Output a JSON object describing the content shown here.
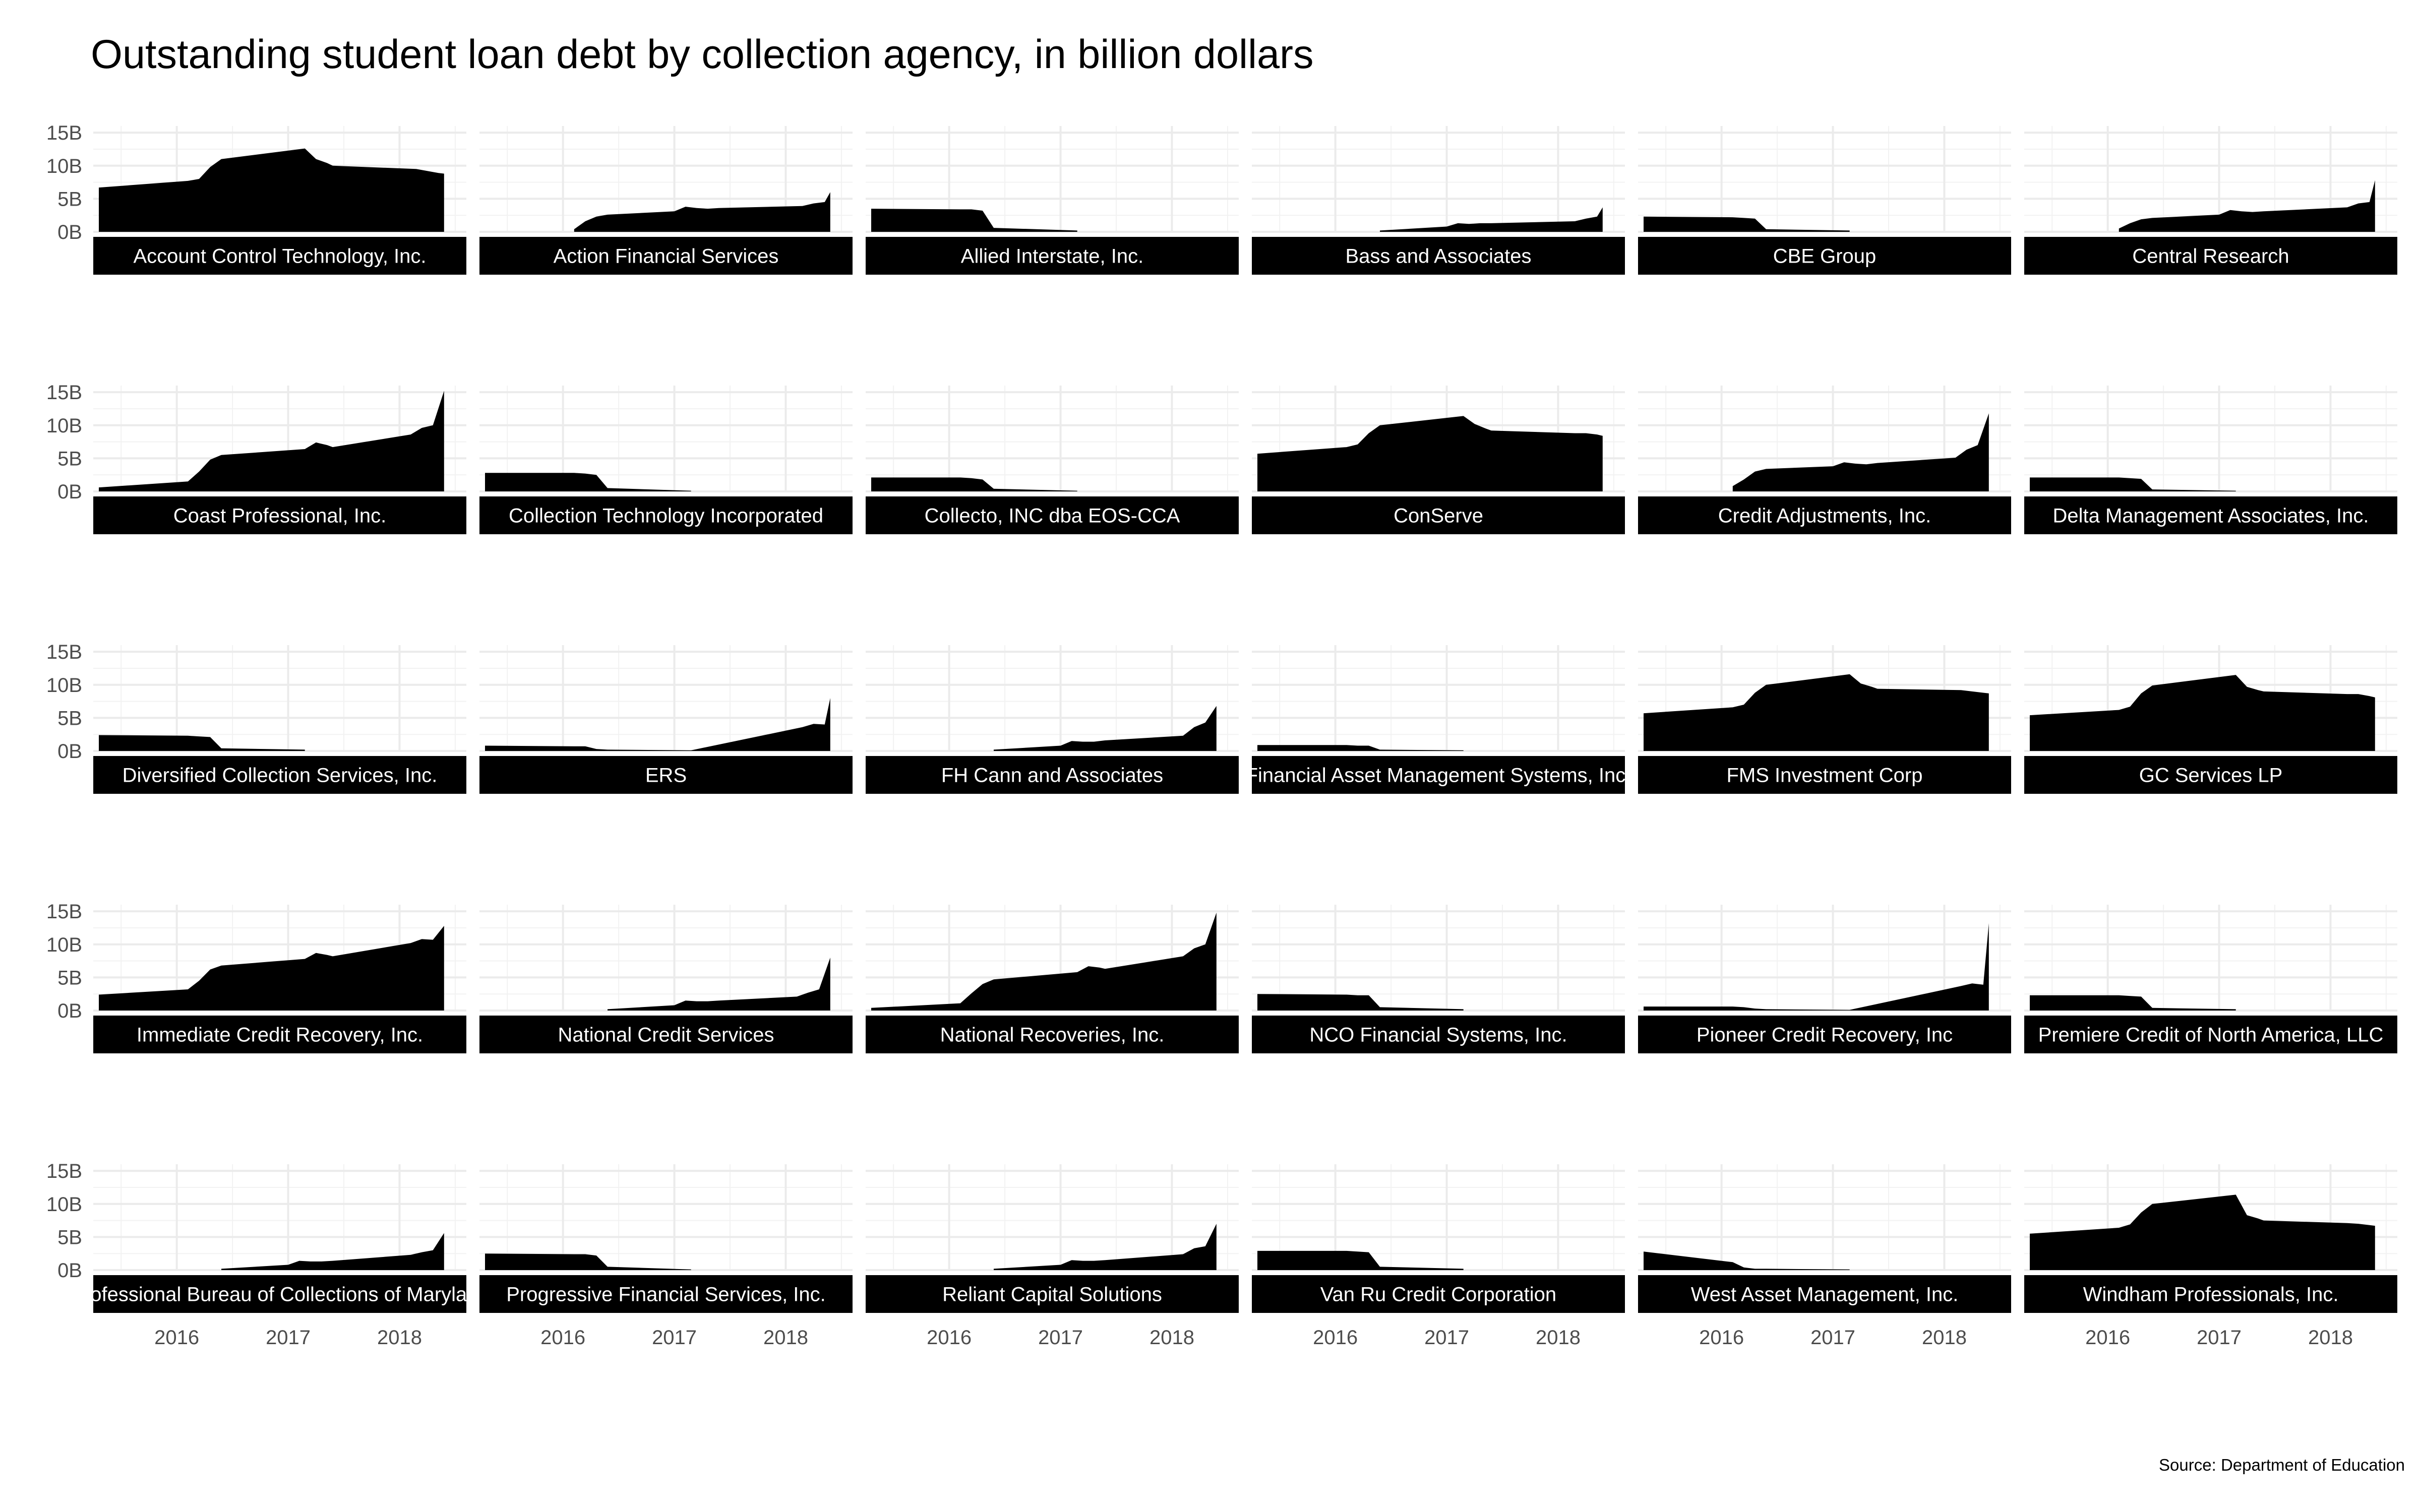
{
  "title": "Outstanding student loan debt by collection agency, in billion dollars",
  "caption": "Source: Department of Education",
  "chart_data": {
    "type": "area",
    "title": "Outstanding student loan debt by collection agency, in billion dollars",
    "unit": "billion dollars",
    "ylim": [
      0,
      16
    ],
    "y_ticks": [
      0,
      5,
      10,
      15
    ],
    "y_tick_labels": [
      "0B",
      "5B",
      "10B",
      "15B"
    ],
    "xlim": [
      2015.25,
      2018.6
    ],
    "x_ticks": [
      2016,
      2017,
      2018
    ],
    "x_tick_labels": [
      "2016",
      "2017",
      "2018"
    ],
    "grid": true,
    "fill_color": "#000000",
    "strip_color": "#000000",
    "panels": [
      {
        "name": "Account Control Technology, Inc.",
        "x": [
          2015.3,
          2016.1,
          2016.2,
          2016.3,
          2016.4,
          2017.15,
          2017.25,
          2017.35,
          2017.4,
          2018.15,
          2018.25,
          2018.35,
          2018.4
        ],
        "y": [
          6.7,
          7.7,
          8.0,
          9.8,
          11.0,
          12.6,
          11.0,
          10.4,
          10.0,
          9.5,
          9.2,
          8.9,
          8.8
        ]
      },
      {
        "name": "Action Financial Services",
        "x": [
          2016.1,
          2016.2,
          2016.3,
          2016.4,
          2017.0,
          2017.1,
          2017.2,
          2017.3,
          2017.4,
          2018.15,
          2018.25,
          2018.35,
          2018.4
        ],
        "y": [
          0.4,
          1.6,
          2.3,
          2.6,
          3.1,
          3.8,
          3.6,
          3.5,
          3.6,
          3.9,
          4.3,
          4.5,
          6.0
        ]
      },
      {
        "name": "Allied Interstate, Inc.",
        "x": [
          2015.3,
          2016.1,
          2016.2,
          2016.3,
          2016.4,
          2017.15
        ],
        "y": [
          3.5,
          3.4,
          3.4,
          3.2,
          0.6,
          0.2
        ]
      },
      {
        "name": "Bass and Associates",
        "x": [
          2016.4,
          2017.0,
          2017.1,
          2017.2,
          2017.3,
          2017.4,
          2018.15,
          2018.25,
          2018.35,
          2018.4
        ],
        "y": [
          0.2,
          0.8,
          1.3,
          1.2,
          1.3,
          1.3,
          1.6,
          2.0,
          2.3,
          3.7
        ]
      },
      {
        "name": "CBE Group",
        "x": [
          2015.3,
          2016.1,
          2016.2,
          2016.3,
          2016.4,
          2017.15
        ],
        "y": [
          2.3,
          2.2,
          2.1,
          2.0,
          0.4,
          0.2
        ]
      },
      {
        "name": "Central Research",
        "x": [
          2016.1,
          2016.2,
          2016.3,
          2016.4,
          2017.0,
          2017.1,
          2017.2,
          2017.3,
          2017.4,
          2018.15,
          2018.25,
          2018.35,
          2018.4
        ],
        "y": [
          0.5,
          1.3,
          1.9,
          2.1,
          2.6,
          3.3,
          3.1,
          3.0,
          3.1,
          3.7,
          4.3,
          4.5,
          7.8
        ]
      },
      {
        "name": "Coast Professional, Inc.",
        "x": [
          2015.3,
          2016.1,
          2016.2,
          2016.3,
          2016.4,
          2017.15,
          2017.25,
          2017.35,
          2017.4,
          2018.1,
          2018.2,
          2018.3,
          2018.4
        ],
        "y": [
          0.6,
          1.5,
          3.0,
          4.8,
          5.5,
          6.4,
          7.4,
          7.0,
          6.7,
          8.6,
          9.6,
          10.0,
          15.2
        ]
      },
      {
        "name": "Collection Technology Incorporated",
        "x": [
          2015.3,
          2016.1,
          2016.2,
          2016.3,
          2016.4,
          2017.15
        ],
        "y": [
          2.8,
          2.8,
          2.7,
          2.5,
          0.5,
          0.1
        ]
      },
      {
        "name": "Collecto, INC dba EOS-CCA",
        "x": [
          2015.3,
          2016.1,
          2016.2,
          2016.3,
          2016.4,
          2017.15
        ],
        "y": [
          2.1,
          2.1,
          2.0,
          1.8,
          0.4,
          0.1
        ]
      },
      {
        "name": "ConServe",
        "x": [
          2015.3,
          2016.1,
          2016.2,
          2016.3,
          2016.4,
          2017.15,
          2017.25,
          2017.35,
          2017.4,
          2018.15,
          2018.25,
          2018.35,
          2018.4
        ],
        "y": [
          5.7,
          6.7,
          7.1,
          8.8,
          10.0,
          11.4,
          10.2,
          9.5,
          9.2,
          8.8,
          8.8,
          8.6,
          8.4
        ]
      },
      {
        "name": "Credit Adjustments, Inc.",
        "x": [
          2016.1,
          2016.2,
          2016.3,
          2016.4,
          2017.0,
          2017.1,
          2017.2,
          2017.3,
          2017.4,
          2018.1,
          2018.2,
          2018.3,
          2018.4
        ],
        "y": [
          0.8,
          1.8,
          3.0,
          3.4,
          3.8,
          4.4,
          4.2,
          4.1,
          4.3,
          5.1,
          6.3,
          7.0,
          11.8
        ]
      },
      {
        "name": "Delta Management Associates, Inc.",
        "x": [
          2015.3,
          2016.1,
          2016.2,
          2016.3,
          2016.4,
          2017.15
        ],
        "y": [
          2.1,
          2.1,
          2.0,
          1.9,
          0.3,
          0.1
        ]
      },
      {
        "name": "Diversified Collection Services, Inc.",
        "x": [
          2015.3,
          2016.1,
          2016.2,
          2016.3,
          2016.4,
          2017.15
        ],
        "y": [
          2.4,
          2.3,
          2.2,
          2.1,
          0.4,
          0.2
        ]
      },
      {
        "name": "ERS",
        "x": [
          2015.3,
          2016.1,
          2016.2,
          2016.3,
          2016.4,
          2017.15,
          2018.15,
          2018.25,
          2018.35,
          2018.4
        ],
        "y": [
          0.8,
          0.7,
          0.7,
          0.3,
          0.2,
          0.1,
          3.6,
          4.1,
          4.0,
          8.0
        ]
      },
      {
        "name": "FH Cann and Associates",
        "x": [
          2016.4,
          2017.0,
          2017.1,
          2017.2,
          2017.3,
          2017.4,
          2018.1,
          2018.2,
          2018.3,
          2018.4
        ],
        "y": [
          0.2,
          0.8,
          1.5,
          1.4,
          1.4,
          1.6,
          2.3,
          3.6,
          4.3,
          6.8
        ]
      },
      {
        "name": "Financial Asset Management Systems, Inc.",
        "x": [
          2015.3,
          2016.1,
          2016.2,
          2016.3,
          2016.4,
          2017.15
        ],
        "y": [
          0.9,
          0.9,
          0.8,
          0.8,
          0.2,
          0.1
        ]
      },
      {
        "name": "FMS Investment Corp",
        "x": [
          2015.3,
          2016.1,
          2016.2,
          2016.3,
          2016.4,
          2017.15,
          2017.25,
          2017.35,
          2017.4,
          2018.15,
          2018.25,
          2018.35,
          2018.4
        ],
        "y": [
          5.7,
          6.6,
          7.0,
          8.8,
          10.0,
          11.6,
          10.2,
          9.7,
          9.4,
          9.2,
          9.0,
          8.8,
          8.7
        ]
      },
      {
        "name": "GC Services LP",
        "x": [
          2015.3,
          2016.1,
          2016.2,
          2016.3,
          2016.4,
          2017.15,
          2017.25,
          2017.35,
          2017.4,
          2018.15,
          2018.25,
          2018.35,
          2018.4
        ],
        "y": [
          5.4,
          6.2,
          6.7,
          8.7,
          9.9,
          11.5,
          9.7,
          9.2,
          9.0,
          8.6,
          8.6,
          8.3,
          8.1
        ]
      },
      {
        "name": "Immediate Credit Recovery, Inc.",
        "x": [
          2015.3,
          2016.1,
          2016.2,
          2016.3,
          2016.4,
          2017.15,
          2017.25,
          2017.35,
          2017.4,
          2018.1,
          2018.2,
          2018.3,
          2018.4
        ],
        "y": [
          2.4,
          3.2,
          4.5,
          6.2,
          6.8,
          7.8,
          8.7,
          8.4,
          8.2,
          10.2,
          10.8,
          10.7,
          12.8
        ]
      },
      {
        "name": "National Credit Services",
        "x": [
          2016.4,
          2017.0,
          2017.1,
          2017.2,
          2017.3,
          2017.4,
          2018.1,
          2018.2,
          2018.3,
          2018.4
        ],
        "y": [
          0.2,
          0.8,
          1.5,
          1.4,
          1.4,
          1.5,
          2.1,
          2.7,
          3.2,
          8.0
        ]
      },
      {
        "name": "National Recoveries, Inc.",
        "x": [
          2015.3,
          2016.1,
          2016.2,
          2016.3,
          2016.4,
          2017.15,
          2017.25,
          2017.35,
          2017.4,
          2018.1,
          2018.2,
          2018.3,
          2018.4
        ],
        "y": [
          0.4,
          1.1,
          2.6,
          4.0,
          4.7,
          5.8,
          6.7,
          6.5,
          6.3,
          8.2,
          9.4,
          10.0,
          14.8
        ]
      },
      {
        "name": "NCO Financial Systems, Inc.",
        "x": [
          2015.3,
          2016.1,
          2016.2,
          2016.3,
          2016.4,
          2017.15
        ],
        "y": [
          2.5,
          2.4,
          2.3,
          2.3,
          0.5,
          0.2
        ]
      },
      {
        "name": "Pioneer Credit Recovery, Inc",
        "x": [
          2015.3,
          2016.1,
          2016.2,
          2016.3,
          2016.4,
          2017.15,
          2018.15,
          2018.25,
          2018.35,
          2018.4
        ],
        "y": [
          0.6,
          0.6,
          0.5,
          0.3,
          0.2,
          0.1,
          3.7,
          4.1,
          3.9,
          13.2
        ]
      },
      {
        "name": "Premiere Credit of North America, LLC",
        "x": [
          2015.3,
          2016.1,
          2016.2,
          2016.3,
          2016.4,
          2017.15
        ],
        "y": [
          2.3,
          2.3,
          2.2,
          2.1,
          0.4,
          0.2
        ]
      },
      {
        "name": "Professional Bureau of Collections of Maryland",
        "x": [
          2016.4,
          2017.0,
          2017.1,
          2017.2,
          2017.3,
          2017.4,
          2018.1,
          2018.2,
          2018.3,
          2018.4
        ],
        "y": [
          0.2,
          0.8,
          1.4,
          1.3,
          1.3,
          1.4,
          2.3,
          2.7,
          3.0,
          5.6
        ]
      },
      {
        "name": "Progressive Financial Services, Inc.",
        "x": [
          2015.3,
          2016.1,
          2016.2,
          2016.3,
          2016.4,
          2017.15
        ],
        "y": [
          2.5,
          2.4,
          2.4,
          2.2,
          0.5,
          0.1
        ]
      },
      {
        "name": "Reliant Capital Solutions",
        "x": [
          2016.4,
          2017.0,
          2017.1,
          2017.2,
          2017.3,
          2017.4,
          2018.1,
          2018.2,
          2018.3,
          2018.4
        ],
        "y": [
          0.2,
          0.8,
          1.5,
          1.4,
          1.4,
          1.5,
          2.4,
          3.3,
          3.6,
          7.0
        ]
      },
      {
        "name": "Van Ru Credit Corporation",
        "x": [
          2015.3,
          2016.1,
          2016.2,
          2016.3,
          2016.4,
          2017.15
        ],
        "y": [
          2.9,
          2.9,
          2.8,
          2.7,
          0.5,
          0.2
        ]
      },
      {
        "name": "West Asset Management, Inc.",
        "x": [
          2015.3,
          2016.1,
          2016.2,
          2016.3,
          2016.4,
          2017.15
        ],
        "y": [
          2.8,
          1.2,
          0.4,
          0.2,
          0.2,
          0.1
        ]
      },
      {
        "name": "Windham Professionals, Inc.",
        "x": [
          2015.3,
          2016.1,
          2016.2,
          2016.3,
          2016.4,
          2017.15,
          2017.25,
          2017.35,
          2017.4,
          2018.15,
          2018.25,
          2018.35,
          2018.4
        ],
        "y": [
          5.5,
          6.4,
          6.9,
          8.7,
          10.0,
          11.4,
          8.3,
          7.8,
          7.5,
          7.1,
          7.0,
          6.8,
          6.7
        ]
      }
    ]
  }
}
